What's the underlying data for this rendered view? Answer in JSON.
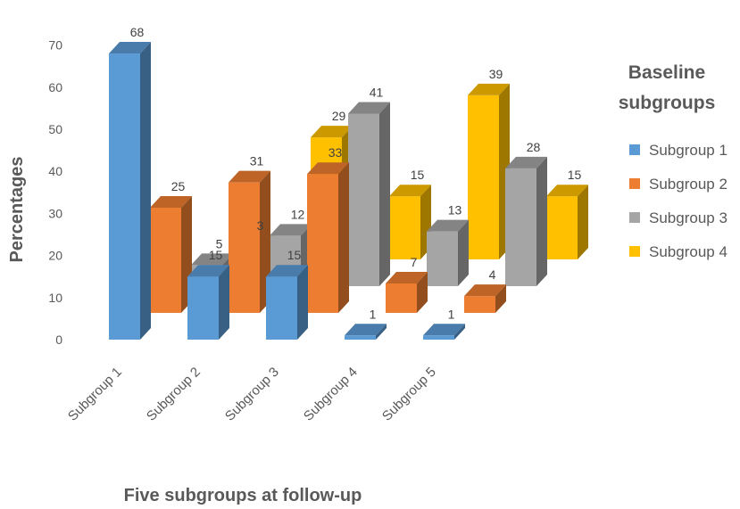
{
  "chart_data": {
    "type": "bar",
    "style": "3d-clustered-column",
    "categories": [
      "Subgroup 1",
      "Subgroup 2",
      "Subgroup 3",
      "Subgroup 4",
      "Subgroup 5"
    ],
    "series": [
      {
        "name": "Subgroup 1",
        "color": "#5B9BD5",
        "values": [
          68,
          15,
          15,
          1,
          1
        ]
      },
      {
        "name": "Subgroup 2",
        "color": "#ED7D31",
        "values": [
          25,
          31,
          33,
          7,
          4
        ]
      },
      {
        "name": "Subgroup 3",
        "color": "#A5A5A5",
        "values": [
          5,
          12,
          41,
          13,
          28
        ]
      },
      {
        "name": "Subgroup 4",
        "color": "#FFC000",
        "values": [
          3,
          29,
          15,
          39,
          15
        ]
      }
    ],
    "xlabel": "Five subgroups at follow-up",
    "ylabel": "Percentages",
    "yticks": [
      0,
      10,
      20,
      30,
      40,
      50,
      60,
      70
    ],
    "ylim": [
      0,
      70
    ],
    "grid": false,
    "legend": {
      "title": "Baseline subgroups",
      "title_lines": [
        "Baseline",
        "subgroups"
      ],
      "position": "right"
    }
  }
}
